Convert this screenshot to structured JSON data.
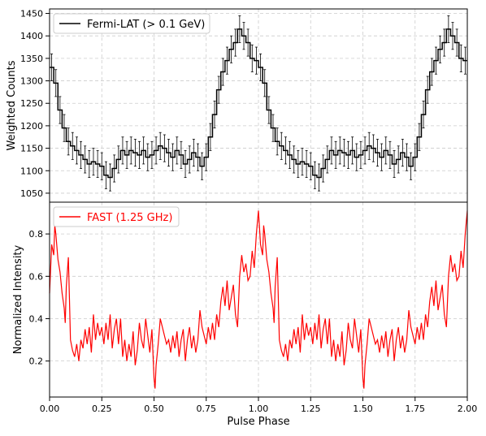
{
  "chart_data": [
    {
      "type": "line",
      "style": "step-with-errorbars",
      "ylabel": "Weighted Counts",
      "xlim": [
        0,
        2
      ],
      "ylim": [
        1030,
        1460
      ],
      "yticks": [
        1050,
        1100,
        1150,
        1200,
        1250,
        1300,
        1350,
        1400,
        1450
      ],
      "grid": true,
      "legend_position": "top-left",
      "series": [
        {
          "name": "Fermi-LAT (> 0.1 GeV)",
          "color": "#000000",
          "bins": 50,
          "x": [
            0.01,
            0.03,
            0.05,
            0.07,
            0.09,
            0.11,
            0.13,
            0.15,
            0.17,
            0.19,
            0.21,
            0.23,
            0.25,
            0.27,
            0.29,
            0.31,
            0.33,
            0.35,
            0.37,
            0.39,
            0.41,
            0.43,
            0.45,
            0.47,
            0.49,
            0.51,
            0.53,
            0.55,
            0.57,
            0.59,
            0.61,
            0.63,
            0.65,
            0.67,
            0.69,
            0.71,
            0.73,
            0.75,
            0.77,
            0.79,
            0.81,
            0.83,
            0.85,
            0.87,
            0.89,
            0.91,
            0.93,
            0.95,
            0.97,
            0.99
          ],
          "values": [
            1330,
            1295,
            1235,
            1195,
            1165,
            1155,
            1145,
            1135,
            1125,
            1115,
            1120,
            1115,
            1110,
            1090,
            1085,
            1105,
            1125,
            1145,
            1135,
            1145,
            1140,
            1135,
            1145,
            1130,
            1135,
            1145,
            1155,
            1150,
            1140,
            1130,
            1145,
            1135,
            1115,
            1125,
            1140,
            1130,
            1110,
            1130,
            1175,
            1225,
            1280,
            1320,
            1345,
            1370,
            1385,
            1415,
            1400,
            1385,
            1350,
            1345
          ],
          "errors": 30
        }
      ]
    },
    {
      "type": "line",
      "xlabel": "Pulse Phase",
      "ylabel": "Normalized Intensity",
      "xlim": [
        0,
        2
      ],
      "ylim": [
        0.03,
        0.95
      ],
      "xticks": [
        "0.00",
        "0.25",
        "0.50",
        "0.75",
        "1.00",
        "1.25",
        "1.50",
        "1.75",
        "2.00"
      ],
      "yticks": [
        "0.2",
        "0.4",
        "0.6",
        "0.8"
      ],
      "grid": true,
      "legend_position": "top-left",
      "series": [
        {
          "name": "FAST (1.25 GHz)",
          "color": "#ff0000",
          "x": [
            0.0,
            0.01,
            0.02,
            0.025,
            0.03,
            0.04,
            0.05,
            0.06,
            0.07,
            0.075,
            0.08,
            0.09,
            0.095,
            0.1,
            0.11,
            0.12,
            0.13,
            0.14,
            0.15,
            0.16,
            0.17,
            0.18,
            0.19,
            0.2,
            0.21,
            0.22,
            0.23,
            0.24,
            0.25,
            0.26,
            0.27,
            0.28,
            0.29,
            0.3,
            0.31,
            0.32,
            0.33,
            0.34,
            0.35,
            0.36,
            0.37,
            0.38,
            0.39,
            0.4,
            0.41,
            0.42,
            0.43,
            0.44,
            0.45,
            0.46,
            0.47,
            0.48,
            0.49,
            0.5,
            0.505,
            0.51,
            0.52,
            0.53,
            0.54,
            0.55,
            0.56,
            0.57,
            0.58,
            0.59,
            0.6,
            0.61,
            0.62,
            0.63,
            0.64,
            0.65,
            0.66,
            0.67,
            0.68,
            0.69,
            0.7,
            0.71,
            0.72,
            0.73,
            0.74,
            0.75,
            0.76,
            0.77,
            0.78,
            0.79,
            0.8,
            0.81,
            0.82,
            0.83,
            0.84,
            0.85,
            0.86,
            0.87,
            0.88,
            0.89,
            0.9,
            0.91,
            0.92,
            0.93,
            0.94,
            0.95,
            0.96,
            0.97,
            0.98,
            0.99,
            1.0
          ],
          "values": [
            0.52,
            0.75,
            0.7,
            0.84,
            0.8,
            0.68,
            0.62,
            0.52,
            0.45,
            0.38,
            0.55,
            0.69,
            0.5,
            0.3,
            0.25,
            0.22,
            0.28,
            0.2,
            0.3,
            0.26,
            0.35,
            0.28,
            0.36,
            0.24,
            0.42,
            0.3,
            0.38,
            0.32,
            0.36,
            0.28,
            0.38,
            0.3,
            0.42,
            0.26,
            0.35,
            0.4,
            0.28,
            0.4,
            0.22,
            0.3,
            0.2,
            0.28,
            0.22,
            0.34,
            0.18,
            0.25,
            0.38,
            0.3,
            0.26,
            0.4,
            0.32,
            0.24,
            0.35,
            0.12,
            0.07,
            0.18,
            0.28,
            0.4,
            0.36,
            0.32,
            0.28,
            0.3,
            0.24,
            0.32,
            0.26,
            0.34,
            0.22,
            0.3,
            0.35,
            0.2,
            0.3,
            0.36,
            0.26,
            0.32,
            0.24,
            0.3,
            0.44,
            0.36,
            0.32,
            0.28,
            0.36,
            0.3,
            0.38,
            0.3,
            0.42,
            0.36,
            0.48,
            0.55,
            0.46,
            0.58,
            0.44,
            0.5,
            0.56,
            0.42,
            0.36,
            0.6,
            0.7,
            0.62,
            0.66,
            0.58,
            0.6,
            0.72,
            0.64,
            0.8,
            0.91
          ]
        }
      ]
    }
  ]
}
